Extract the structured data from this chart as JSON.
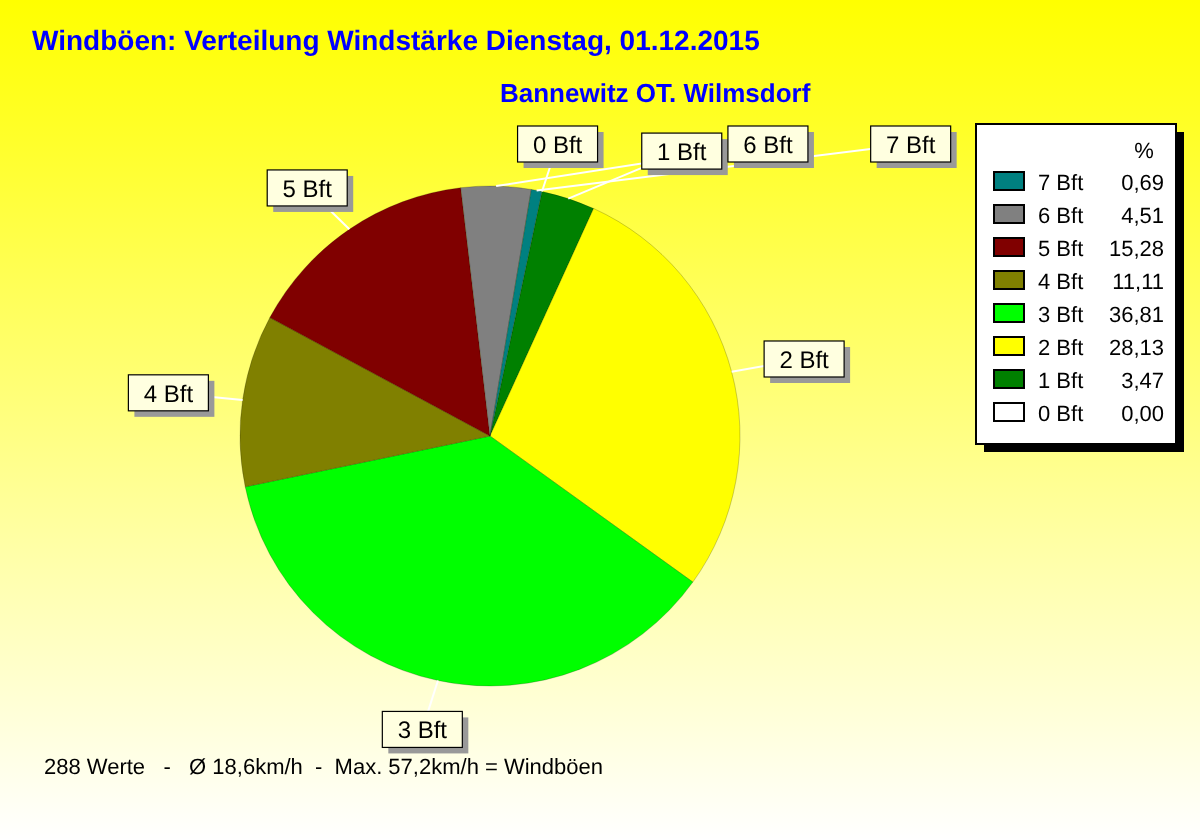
{
  "chart_data": {
    "type": "pie",
    "title": "Windböen: Verteilung Windstärke  Dienstag, 01.12.2015",
    "subtitle": "Bannewitz OT. Wilmsdorf",
    "categories": [
      "0 Bft",
      "1 Bft",
      "2 Bft",
      "3 Bft",
      "4 Bft",
      "5 Bft",
      "6 Bft",
      "7 Bft"
    ],
    "values": [
      0.0,
      3.47,
      28.13,
      36.81,
      11.11,
      15.28,
      4.51,
      0.69
    ],
    "value_labels": [
      "0,00",
      "3,47",
      "28,13",
      "36,81",
      "11,11",
      "15,28",
      "4,51",
      "0,69"
    ],
    "colors": [
      "#ffffff",
      "#008000",
      "#ffff00",
      "#00ff00",
      "#808000",
      "#800000",
      "#808080",
      "#008080"
    ],
    "legend_title": "%",
    "legend": "right",
    "annotations": [
      "288 Werte   -   Ø 18,6km/h  -  Max. 57,2km/h = Windböen"
    ]
  }
}
